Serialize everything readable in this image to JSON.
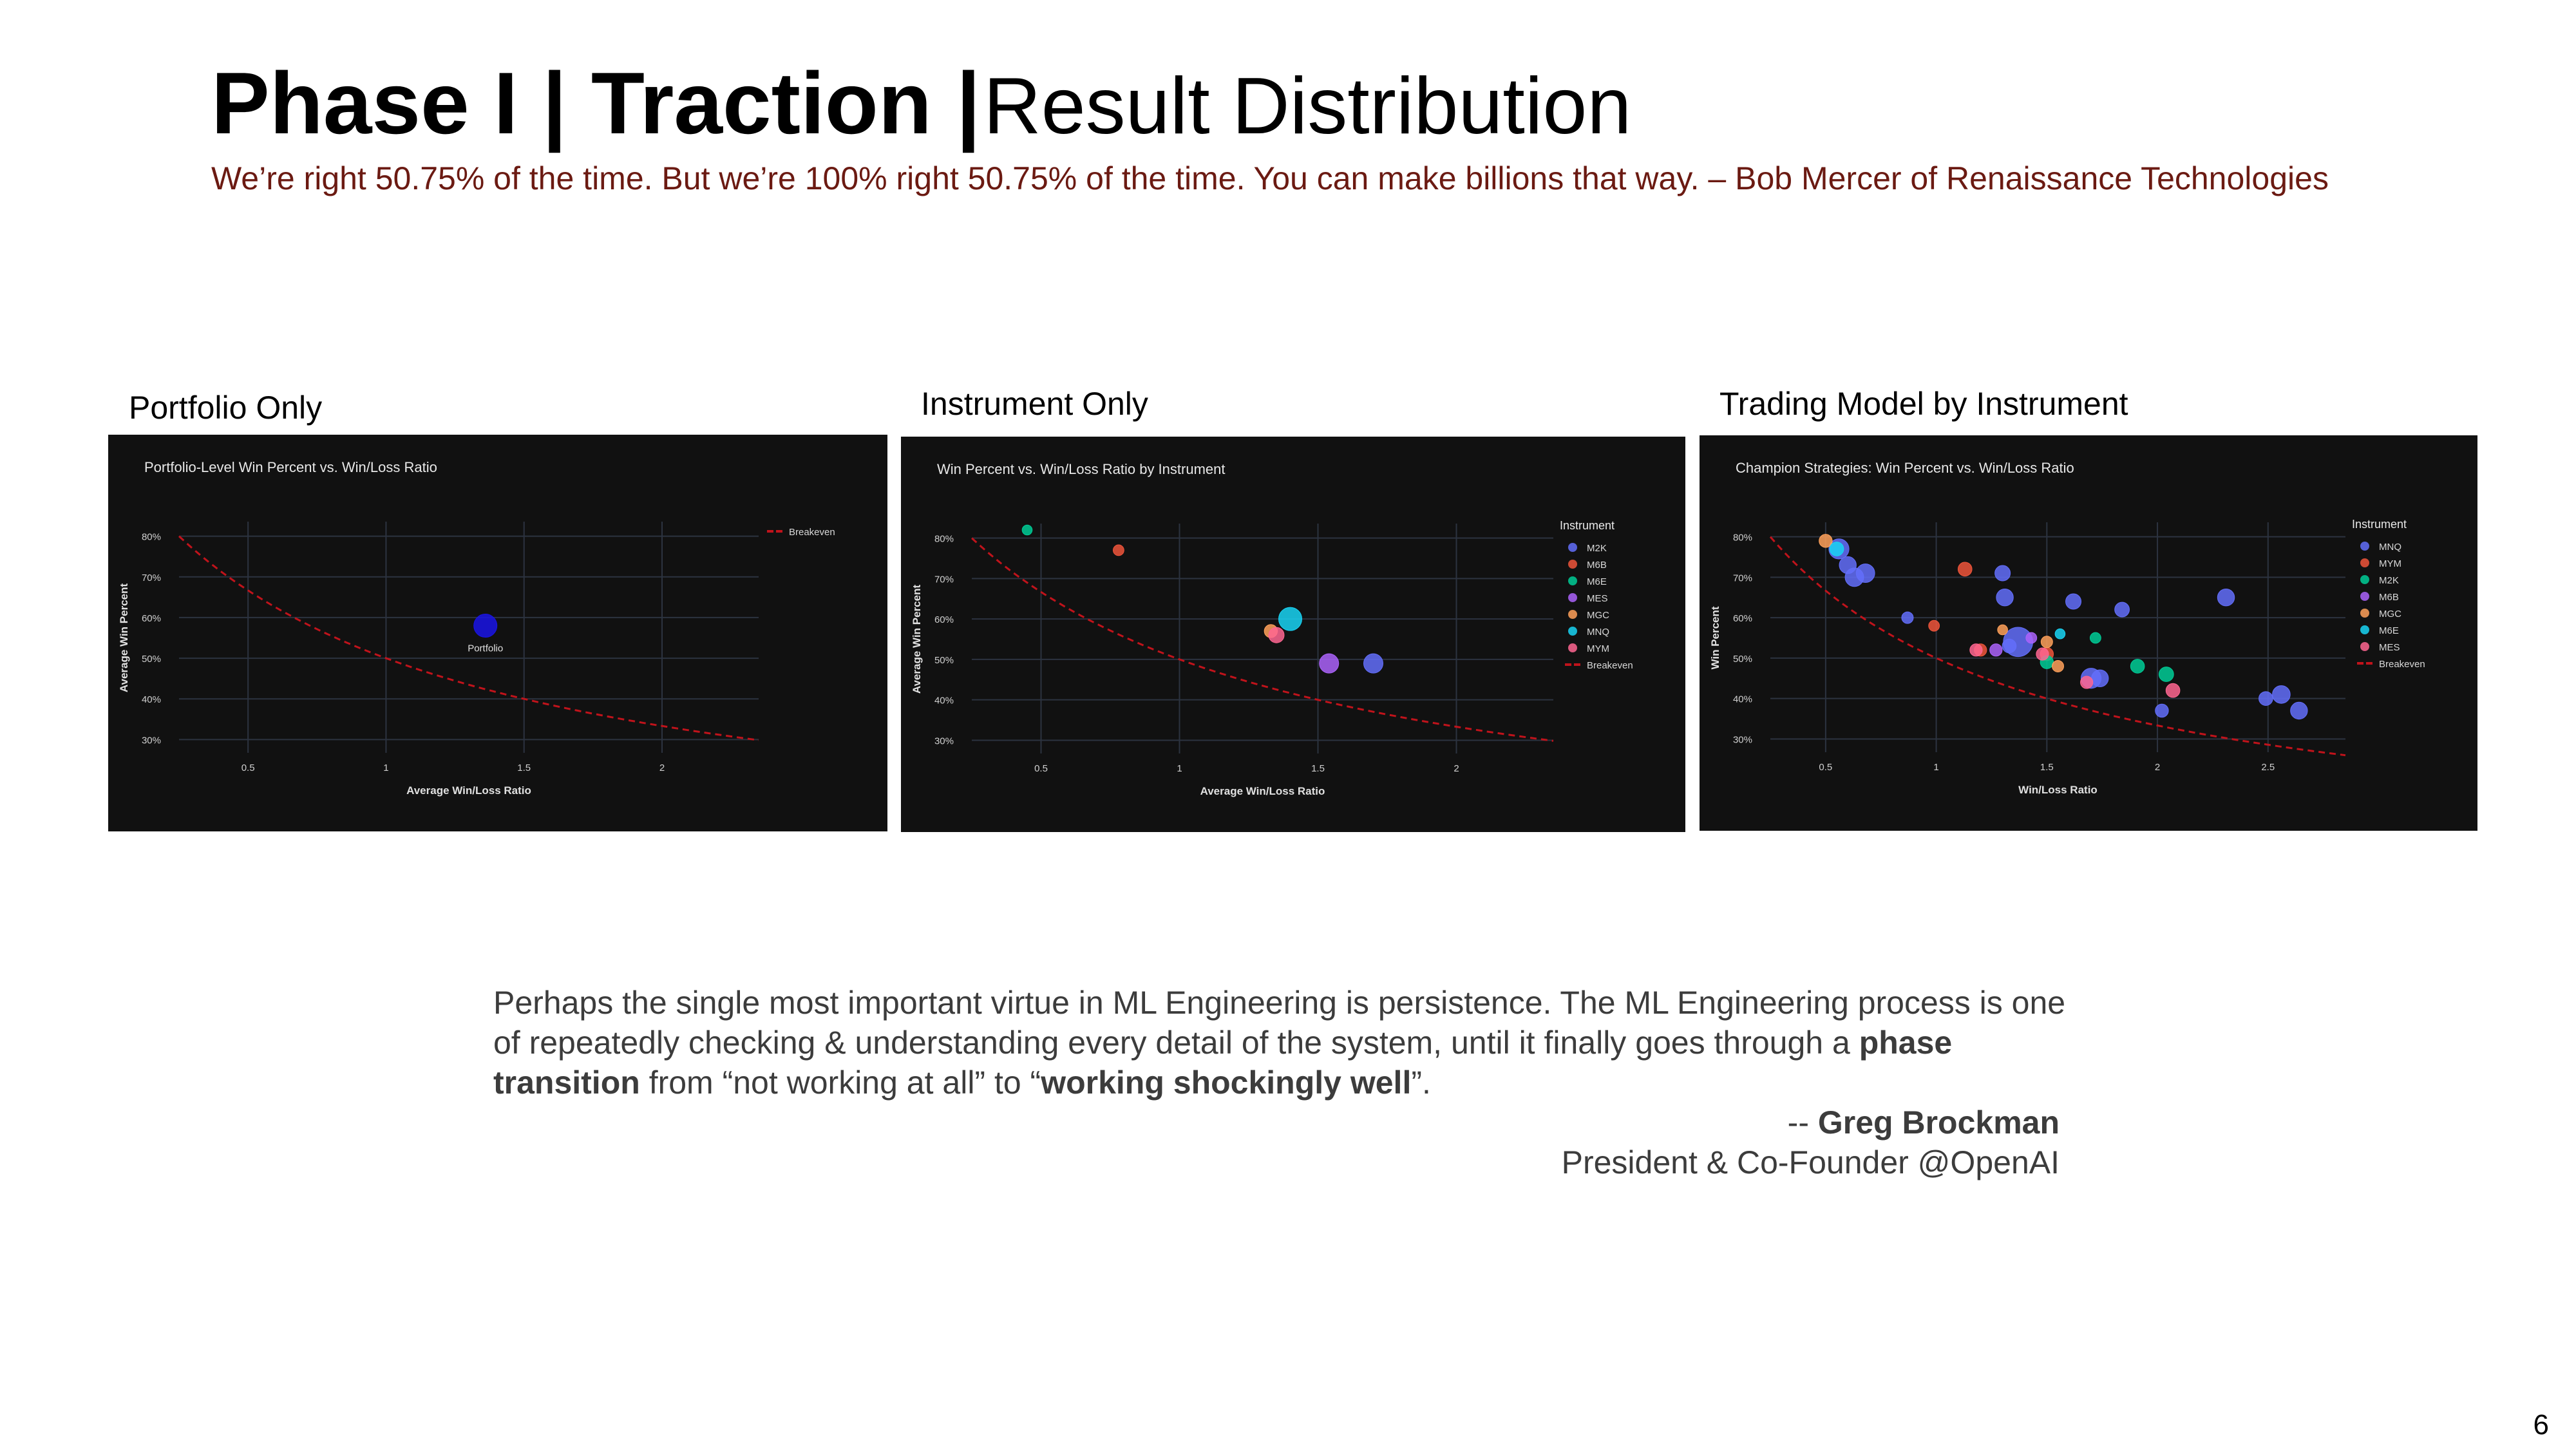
{
  "slide": {
    "title_bold": "Phase I | Traction |",
    "title_light": "Result Distribution",
    "subtitle": "We’re right 50.75% of the time.  But we’re 100% right 50.75% of the time.  You can make billions that way. – Bob Mercer of Renaissance Technologies",
    "page_number": "6"
  },
  "labels": {
    "portfolio": "Portfolio Only",
    "instrument": "Instrument Only",
    "model": "Trading Model by Instrument"
  },
  "quote": {
    "part1": "Perhaps the single most important virtue in ML Engineering is persistence. The ML Engineering process is one of repeatedly checking & understanding every detail of the system, until it finally goes through a ",
    "bold1": "phase transition",
    "part2": " from “not working at all” to “",
    "bold2": "working shockingly well",
    "part3": "”.",
    "attrib_prefix": "-- ",
    "attrib_name": "Greg Brockman",
    "attrib_title": "President & Co-Founder @OpenAI"
  },
  "chart_data": [
    {
      "type": "scatter",
      "title": "Portfolio-Level Win Percent vs. Win/Loss Ratio",
      "xlabel": "Average Win/Loss Ratio",
      "ylabel": "Average Win Percent",
      "xlim": [
        0.25,
        2.35
      ],
      "ylim": [
        0.28,
        0.82
      ],
      "xticks": [
        0.5,
        1,
        1.5,
        2
      ],
      "xtick_labels": [
        "0.5",
        "1",
        "1.5",
        "2"
      ],
      "yticks": [
        0.3,
        0.4,
        0.5,
        0.6,
        0.7,
        0.8
      ],
      "ytick_labels": [
        "30%",
        "40%",
        "50%",
        "60%",
        "70%",
        "80%"
      ],
      "legend_title": "",
      "legend_position": "top-right",
      "breakeven": {
        "name": "Breakeven",
        "color": "#c0131b"
      },
      "series": [
        {
          "name": "Portfolio",
          "color": "#1a14e6",
          "label_point": true,
          "points": [
            {
              "x": 1.36,
              "y": 0.58,
              "s": 1
            }
          ]
        }
      ]
    },
    {
      "type": "scatter",
      "title": "Win Percent vs. Win/Loss Ratio by Instrument",
      "xlabel": "Average Win/Loss Ratio",
      "ylabel": "Average Win Percent",
      "xlim": [
        0.25,
        2.35
      ],
      "ylim": [
        0.28,
        0.82
      ],
      "xticks": [
        0.5,
        1,
        1.5,
        2
      ],
      "xtick_labels": [
        "0.5",
        "1",
        "1.5",
        "2"
      ],
      "yticks": [
        0.3,
        0.4,
        0.5,
        0.6,
        0.7,
        0.8
      ],
      "ytick_labels": [
        "30%",
        "40%",
        "50%",
        "60%",
        "70%",
        "80%"
      ],
      "legend_title": "Instrument",
      "legend_position": "top-right",
      "breakeven": {
        "name": "Breakeven",
        "color": "#c0131b"
      },
      "series": [
        {
          "name": "M2K",
          "color": "#636efa",
          "points": [
            {
              "x": 1.7,
              "y": 0.49,
              "s": 0.75
            }
          ]
        },
        {
          "name": "M6B",
          "color": "#ef553b",
          "points": [
            {
              "x": 0.78,
              "y": 0.77,
              "s": 0.2
            }
          ]
        },
        {
          "name": "M6E",
          "color": "#00cc96",
          "points": [
            {
              "x": 0.45,
              "y": 0.82,
              "s": 0.15
            }
          ]
        },
        {
          "name": "MES",
          "color": "#ab63fa",
          "points": [
            {
              "x": 1.54,
              "y": 0.49,
              "s": 0.75
            }
          ]
        },
        {
          "name": "MGC",
          "color": "#ffa15a",
          "points": [
            {
              "x": 1.33,
              "y": 0.57,
              "s": 0.35
            }
          ]
        },
        {
          "name": "MNQ",
          "color": "#19d3f3",
          "points": [
            {
              "x": 1.4,
              "y": 0.6,
              "s": 1
            }
          ]
        },
        {
          "name": "MYM",
          "color": "#ff6692",
          "points": [
            {
              "x": 1.35,
              "y": 0.56,
              "s": 0.5
            }
          ]
        }
      ]
    },
    {
      "type": "scatter",
      "title": "Champion Strategies: Win Percent vs. Win/Loss Ratio",
      "xlabel": "Win/Loss Ratio",
      "ylabel": "Win Percent",
      "xlim": [
        0.25,
        2.85
      ],
      "ylim": [
        0.28,
        0.82
      ],
      "xticks": [
        0.5,
        1,
        1.5,
        2,
        2.5
      ],
      "xtick_labels": [
        "0.5",
        "1",
        "1.5",
        "2",
        "2.5"
      ],
      "yticks": [
        0.3,
        0.4,
        0.5,
        0.6,
        0.7,
        0.8
      ],
      "ytick_labels": [
        "30%",
        "40%",
        "50%",
        "60%",
        "70%",
        "80%"
      ],
      "legend_title": "Instrument",
      "legend_position": "top-right",
      "breakeven": {
        "name": "Breakeven",
        "color": "#c0131b"
      },
      "series": [
        {
          "name": "MNQ",
          "color": "#636efa",
          "points": [
            {
              "x": 0.56,
              "y": 0.77,
              "s": 0.8
            },
            {
              "x": 0.6,
              "y": 0.73,
              "s": 0.6
            },
            {
              "x": 0.63,
              "y": 0.7,
              "s": 0.7
            },
            {
              "x": 0.68,
              "y": 0.71,
              "s": 0.7
            },
            {
              "x": 1.3,
              "y": 0.71,
              "s": 0.5
            },
            {
              "x": 1.31,
              "y": 0.65,
              "s": 0.6
            },
            {
              "x": 1.37,
              "y": 0.54,
              "s": 1.4
            },
            {
              "x": 1.33,
              "y": 0.53,
              "s": 0.4
            },
            {
              "x": 1.62,
              "y": 0.64,
              "s": 0.5
            },
            {
              "x": 1.84,
              "y": 0.62,
              "s": 0.45
            },
            {
              "x": 1.7,
              "y": 0.45,
              "s": 0.8
            },
            {
              "x": 1.74,
              "y": 0.45,
              "s": 0.6
            },
            {
              "x": 2.31,
              "y": 0.65,
              "s": 0.6
            },
            {
              "x": 2.56,
              "y": 0.41,
              "s": 0.65
            },
            {
              "x": 2.64,
              "y": 0.37,
              "s": 0.6
            },
            {
              "x": 2.49,
              "y": 0.4,
              "s": 0.4
            },
            {
              "x": 2.02,
              "y": 0.37,
              "s": 0.35
            },
            {
              "x": 0.87,
              "y": 0.6,
              "s": 0.25
            }
          ]
        },
        {
          "name": "MYM",
          "color": "#ef553b",
          "points": [
            {
              "x": 1.13,
              "y": 0.72,
              "s": 0.4
            },
            {
              "x": 0.99,
              "y": 0.58,
              "s": 0.2
            },
            {
              "x": 1.2,
              "y": 0.52,
              "s": 0.3
            },
            {
              "x": 1.5,
              "y": 0.51,
              "s": 0.35
            }
          ]
        },
        {
          "name": "M2K",
          "color": "#00cc96",
          "points": [
            {
              "x": 1.91,
              "y": 0.48,
              "s": 0.4
            },
            {
              "x": 2.04,
              "y": 0.46,
              "s": 0.45
            },
            {
              "x": 1.5,
              "y": 0.49,
              "s": 0.35
            },
            {
              "x": 1.72,
              "y": 0.55,
              "s": 0.2
            }
          ]
        },
        {
          "name": "M6B",
          "color": "#ab63fa",
          "points": [
            {
              "x": 1.27,
              "y": 0.52,
              "s": 0.3
            },
            {
              "x": 1.43,
              "y": 0.55,
              "s": 0.2
            }
          ]
        },
        {
          "name": "MGC",
          "color": "#ffa15a",
          "points": [
            {
              "x": 0.5,
              "y": 0.79,
              "s": 0.35
            },
            {
              "x": 1.5,
              "y": 0.54,
              "s": 0.25
            },
            {
              "x": 1.55,
              "y": 0.48,
              "s": 0.25
            },
            {
              "x": 1.3,
              "y": 0.57,
              "s": 0.15
            }
          ]
        },
        {
          "name": "M6E",
          "color": "#19d3f3",
          "points": [
            {
              "x": 0.55,
              "y": 0.77,
              "s": 0.4
            },
            {
              "x": 1.56,
              "y": 0.56,
              "s": 0.15
            }
          ]
        },
        {
          "name": "MES",
          "color": "#ff6692",
          "points": [
            {
              "x": 1.18,
              "y": 0.52,
              "s": 0.3
            },
            {
              "x": 2.07,
              "y": 0.42,
              "s": 0.4
            },
            {
              "x": 1.48,
              "y": 0.51,
              "s": 0.3
            },
            {
              "x": 1.68,
              "y": 0.44,
              "s": 0.3
            }
          ]
        }
      ]
    }
  ]
}
